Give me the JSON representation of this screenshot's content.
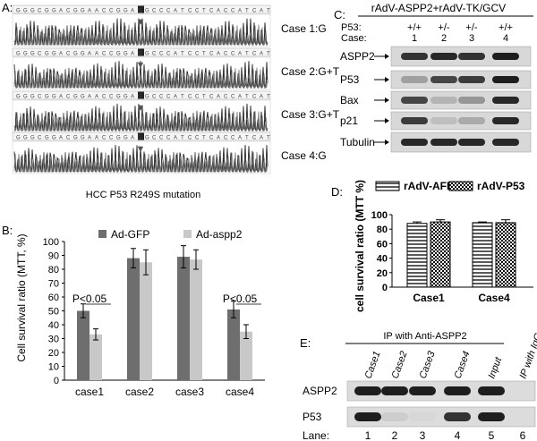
{
  "panelA": {
    "label": "A:",
    "bases": [
      "G",
      "G",
      "G",
      "C",
      "G",
      "G",
      "A",
      "C",
      "G",
      "G",
      "A",
      "A",
      "C",
      "C",
      "G",
      "G",
      "A",
      "G",
      "G",
      "C",
      "C",
      "C",
      "A",
      "T",
      "C",
      "C",
      "T",
      "C",
      "A",
      "C",
      "C",
      "A",
      "T",
      "C",
      "A",
      "T"
    ],
    "arrow_mark": "▼",
    "cases": [
      "Case 1:G",
      "Case 2:G+T",
      "Case 3:G+T",
      "Case 4:G"
    ],
    "caption": "HCC P53 R249S mutation"
  },
  "panelB": {
    "label": "B:",
    "ylabel": "Cell survival ratio (MTT, %)",
    "significance": [
      "P<0.05",
      "P<0.05"
    ],
    "chart_data": {
      "type": "bar",
      "categories": [
        "case1",
        "case2",
        "case3",
        "case4"
      ],
      "series": [
        {
          "name": "Ad-GFP",
          "values": [
            50,
            88,
            89,
            51
          ],
          "errors": [
            5,
            7,
            8,
            6
          ]
        },
        {
          "name": "Ad-aspp2",
          "values": [
            33,
            85,
            87,
            35
          ],
          "errors": [
            4,
            9,
            7,
            5
          ]
        }
      ],
      "ylim": [
        0,
        100
      ],
      "yticks": [
        0,
        10,
        20,
        30,
        40,
        50,
        60,
        70,
        80,
        90,
        100
      ],
      "colors": [
        "#6e6e6e",
        "#c8c8c8"
      ],
      "legend": "top"
    }
  },
  "panelC": {
    "label": "C:",
    "treatment": "rAdV-ASPP2+rAdV-TK/GCV",
    "p53_label": "P53:",
    "case_label": "Case:",
    "genotypes": [
      "+/+",
      "+/-",
      "+/-",
      "+/+"
    ],
    "case_numbers": [
      "1",
      "2",
      "3",
      "4"
    ],
    "rows": [
      {
        "name": "ASPP2",
        "intensity": [
          0.85,
          0.9,
          0.85,
          0.95
        ]
      },
      {
        "name": "P53",
        "intensity": [
          0.3,
          0.75,
          0.8,
          0.95
        ]
      },
      {
        "name": "Bax",
        "intensity": [
          0.75,
          0.2,
          0.35,
          0.9
        ]
      },
      {
        "name": "p21",
        "intensity": [
          0.8,
          0.15,
          0.25,
          0.9
        ]
      },
      {
        "name": "Tubulin",
        "intensity": [
          0.9,
          0.9,
          0.9,
          0.9
        ]
      }
    ]
  },
  "panelD": {
    "label": "D:",
    "ylabel": "cell survival ratio (MTT %)",
    "chart_data": {
      "type": "bar",
      "categories": [
        "Case1",
        "Case4"
      ],
      "series": [
        {
          "name": "rAdV-AFP",
          "values": [
            88,
            89
          ],
          "errors": [
            2,
            1
          ]
        },
        {
          "name": "rAdV-P53",
          "values": [
            90,
            89
          ],
          "errors": [
            3,
            4
          ]
        }
      ],
      "ylim": [
        0,
        100
      ],
      "yticks": [
        0,
        20,
        40,
        60,
        80,
        100
      ],
      "legend": "top"
    }
  },
  "panelE": {
    "label": "E:",
    "ip_title": "IP  with Anti-ASPP2",
    "ip_igg": "IP with IgG",
    "lane_headers": [
      "Case1",
      "Case2",
      "Case3",
      "Case4",
      "Input"
    ],
    "rows": [
      {
        "name": "ASPP2",
        "intensity": [
          0.95,
          0.95,
          0.95,
          0.95,
          0.95,
          0.0
        ]
      },
      {
        "name": "P53",
        "intensity": [
          0.95,
          0.1,
          0.05,
          0.85,
          0.95,
          0.0
        ]
      }
    ],
    "lane_label": "Lane:",
    "lanes": [
      "1",
      "2",
      "3",
      "4",
      "5",
      "6"
    ]
  }
}
